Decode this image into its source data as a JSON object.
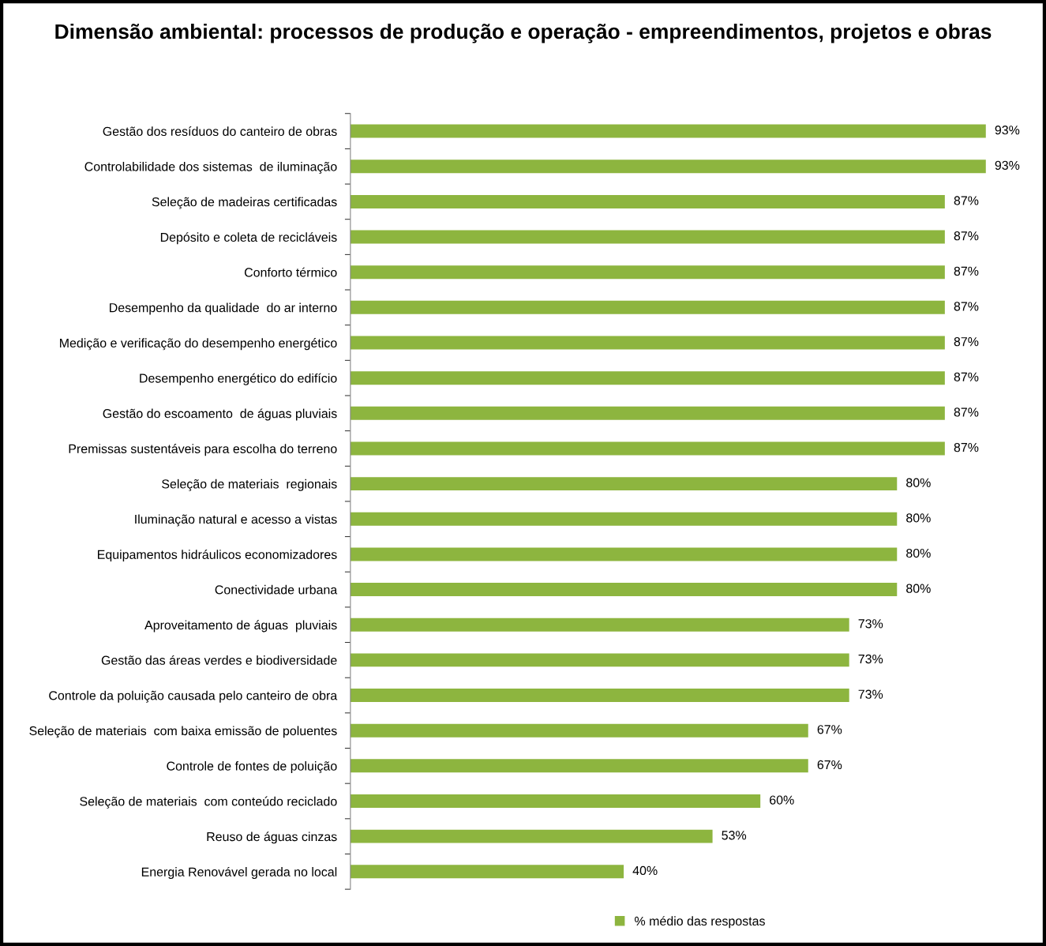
{
  "chart_data": {
    "type": "bar",
    "orientation": "horizontal",
    "title": "Dimensão ambiental: processos de produção e operação - empreendimentos, projetos e obras",
    "categories": [
      "Gestão dos resíduos do canteiro de obras",
      "Controlabilidade dos sistemas  de iluminação",
      "Seleção de madeiras certificadas",
      "Depósito e coleta de recicláveis",
      "Conforto térmico",
      "Desempenho da qualidade  do ar interno",
      "Medição e verificação do desempenho energético",
      "Desempenho energético do edifício",
      "Gestão do escoamento  de águas pluviais",
      "Premissas sustentáveis para escolha do terreno",
      "Seleção de materiais  regionais",
      "Iluminação natural e acesso a vistas",
      "Equipamentos hidráulicos economizadores",
      "Conectividade urbana",
      "Aproveitamento de águas  pluviais",
      "Gestão das áreas verdes e biodiversidade",
      "Controle da poluição causada pelo canteiro de obra",
      "Seleção de materiais  com baixa emissão de poluentes",
      "Controle de fontes de poluição",
      "Seleção de materiais  com conteúdo reciclado",
      "Reuso de águas cinzas",
      "Energia Renovável gerada no local"
    ],
    "series": [
      {
        "name": "% médio das respostas",
        "color": "#8db53f",
        "values": [
          93,
          93,
          87,
          87,
          87,
          87,
          87,
          87,
          87,
          87,
          80,
          80,
          80,
          80,
          73,
          73,
          73,
          67,
          67,
          60,
          53,
          40
        ],
        "value_labels": [
          "93%",
          "93%",
          "87%",
          "87%",
          "87%",
          "87%",
          "87%",
          "87%",
          "87%",
          "87%",
          "80%",
          "80%",
          "80%",
          "80%",
          "73%",
          "73%",
          "73%",
          "67%",
          "67%",
          "60%",
          "53%",
          "40%"
        ]
      }
    ],
    "tick_labels": "y",
    "grid": false,
    "legend": "bottom"
  }
}
